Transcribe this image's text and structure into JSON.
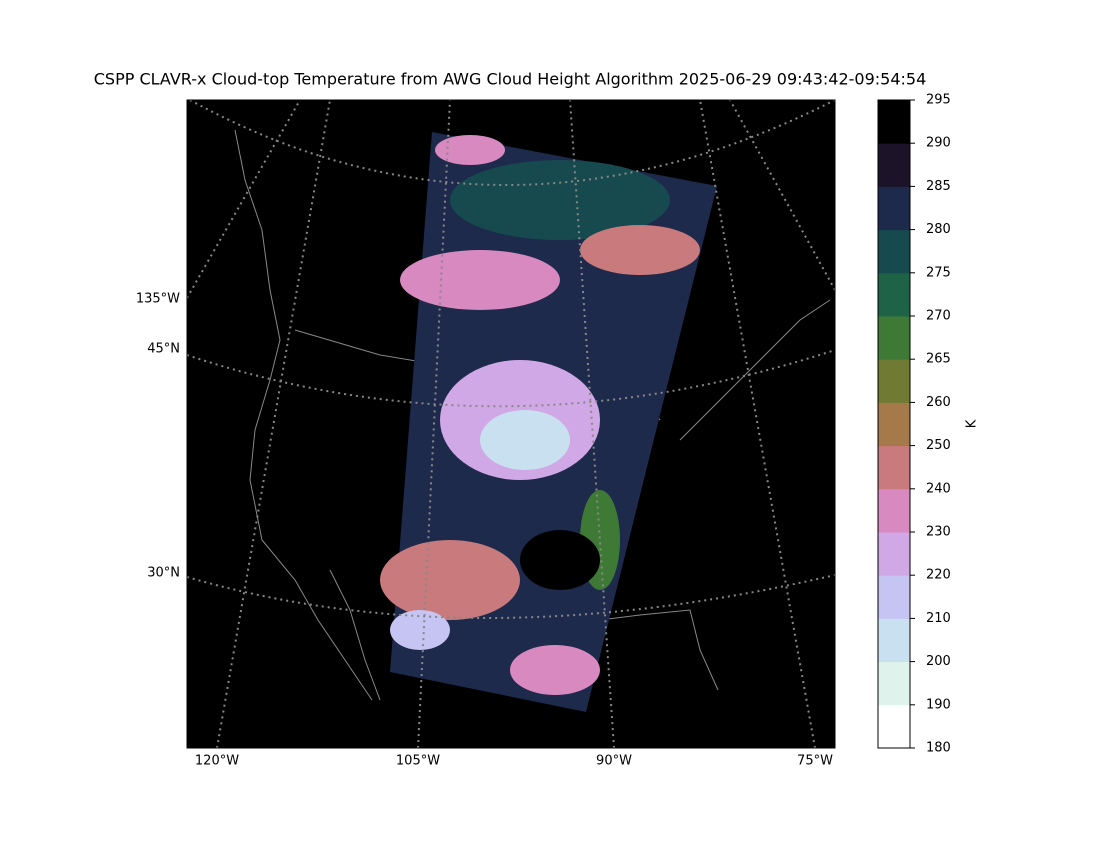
{
  "title": "CSPP CLAVR-x Cloud-top Temperature from AWG Cloud Height Algorithm 2025-06-29 09:43:42-09:54:54",
  "map": {
    "left_labels": [
      "135°W",
      "45°N",
      "30°N"
    ],
    "bottom_labels": [
      "120°W",
      "105°W",
      "90°W",
      "75°W"
    ]
  },
  "colorbar": {
    "label": "K",
    "ticks": [
      180,
      190,
      200,
      210,
      220,
      230,
      240,
      250,
      260,
      265,
      270,
      275,
      280,
      285,
      290,
      295
    ],
    "colors": [
      "#ffffff",
      "#dff3ec",
      "#c8e0f0",
      "#c5c4f3",
      "#d1a8e6",
      "#d889c0",
      "#c97a7c",
      "#a5794a",
      "#707a33",
      "#3e7a35",
      "#1e6347",
      "#174a4e",
      "#1e2a4c",
      "#1c1328",
      "#000000"
    ]
  }
}
